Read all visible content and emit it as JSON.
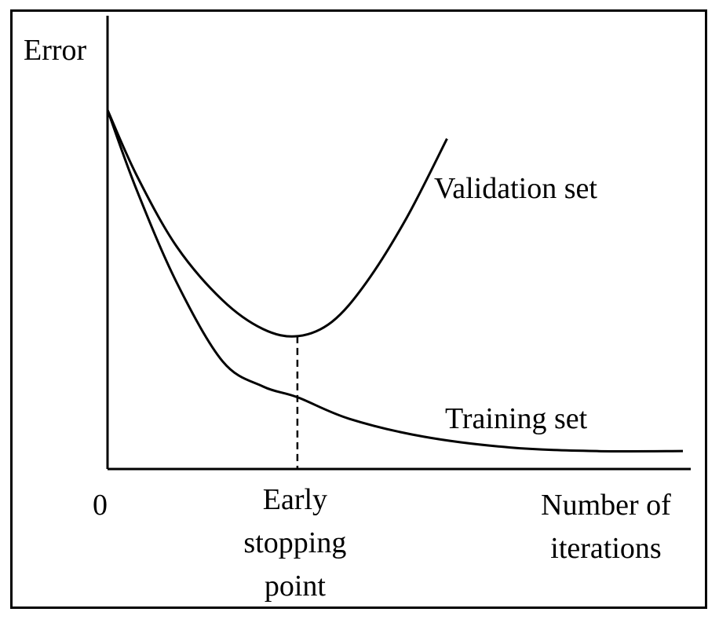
{
  "chart_data": {
    "type": "line",
    "ylabel": "Error",
    "x_origin_label": "0",
    "xlabel": [
      "Number of",
      "iterations"
    ],
    "series": [
      {
        "name": "Validation set",
        "color": "#000000",
        "points": [
          [
            0,
            1.0
          ],
          [
            0.05,
            0.82
          ],
          [
            0.12,
            0.62
          ],
          [
            0.2,
            0.47
          ],
          [
            0.27,
            0.39
          ],
          [
            0.33,
            0.37
          ],
          [
            0.39,
            0.41
          ],
          [
            0.45,
            0.52
          ],
          [
            0.52,
            0.7
          ],
          [
            0.59,
            0.92
          ]
        ]
      },
      {
        "name": "Training set",
        "color": "#000000",
        "points": [
          [
            0,
            1.0
          ],
          [
            0.05,
            0.78
          ],
          [
            0.12,
            0.52
          ],
          [
            0.2,
            0.3
          ],
          [
            0.27,
            0.23
          ],
          [
            0.33,
            0.2
          ],
          [
            0.42,
            0.14
          ],
          [
            0.55,
            0.09
          ],
          [
            0.7,
            0.06
          ],
          [
            0.85,
            0.05
          ],
          [
            1.0,
            0.05
          ]
        ]
      }
    ],
    "annotation": {
      "type": "vertical-dashed",
      "x": 0.33,
      "label": [
        "Early",
        "stopping",
        "point"
      ]
    },
    "xlim": [
      0,
      1
    ],
    "ylim": [
      0,
      1
    ],
    "grid": false
  }
}
